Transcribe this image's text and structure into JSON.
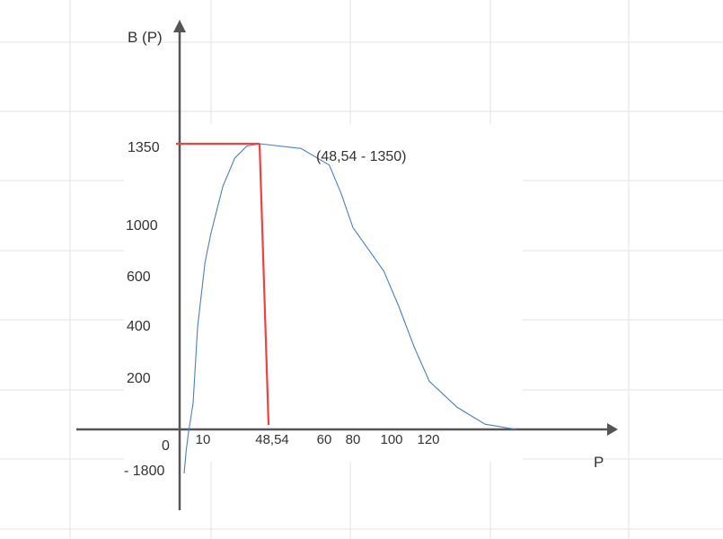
{
  "chart_data": {
    "type": "line",
    "ylabel": "B (P)",
    "xlabel": "P",
    "annotation": "(48,54 -  1350)",
    "origin_label": "0",
    "x_tick_labels": [
      "10",
      "48,54",
      "60",
      "80",
      "100",
      "120"
    ],
    "y_tick_labels": [
      "1350",
      "1000",
      "600",
      "400",
      "200",
      "- 1800"
    ],
    "series": [
      {
        "x": [
          2,
          3,
          4,
          6,
          8,
          12,
          16,
          24,
          32,
          40,
          48.54,
          56,
          64,
          72,
          80,
          88,
          96,
          104,
          112,
          120,
          128,
          136,
          145
        ],
        "y": [
          -1800,
          -800,
          -100,
          100,
          400,
          720,
          950,
          1170,
          1290,
          1340,
          1350,
          1330,
          1260,
          1140,
          990,
          820,
          650,
          480,
          320,
          185,
          85,
          20,
          0
        ]
      }
    ],
    "highlight": {
      "x": 48.54,
      "y": 1350
    },
    "colors": {
      "axis": "#555555",
      "curve": "#4a7fc0",
      "highlight": "#f04040",
      "grid": "#e3e3e3"
    }
  }
}
